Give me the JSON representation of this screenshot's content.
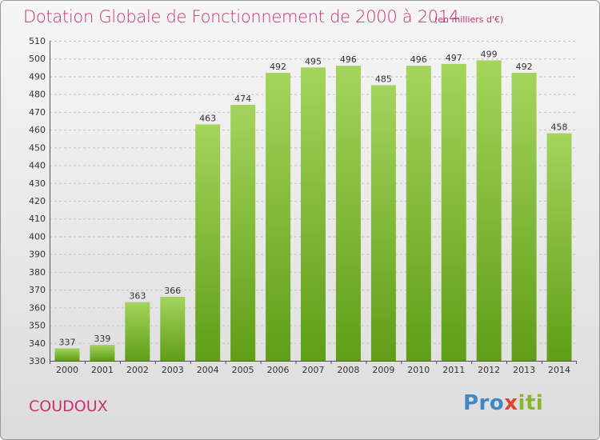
{
  "title": "Dotation Globale de Fonctionnement de 2000 à 2014",
  "subtitle": "(en milliers d'€)",
  "place": "COUDOUX",
  "logo": [
    "Pro",
    "x",
    "iti"
  ],
  "colors": {
    "bar_top": "#a4d45c",
    "bar_bottom": "#5f9e16",
    "title": "#c8326e"
  },
  "chart_data": {
    "type": "bar",
    "title": "Dotation Globale de Fonctionnement de 2000 à 2014",
    "subtitle": "(en milliers d'€)",
    "xlabel": "",
    "ylabel": "",
    "categories": [
      "2000",
      "2001",
      "2002",
      "2003",
      "2004",
      "2005",
      "2006",
      "2007",
      "2008",
      "2009",
      "2010",
      "2011",
      "2012",
      "2013",
      "2014"
    ],
    "values": [
      337,
      339,
      363,
      366,
      463,
      474,
      492,
      495,
      496,
      485,
      496,
      497,
      499,
      492,
      458
    ],
    "ylim": [
      330,
      510
    ],
    "yticks": [
      330,
      340,
      350,
      360,
      370,
      380,
      390,
      400,
      410,
      420,
      430,
      440,
      450,
      460,
      470,
      480,
      490,
      500,
      510
    ],
    "grid": true,
    "legend": "none"
  }
}
